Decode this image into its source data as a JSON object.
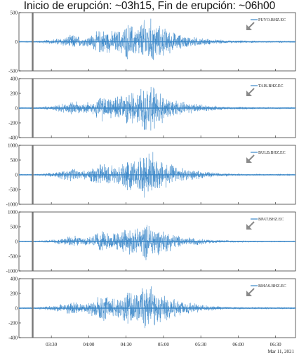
{
  "title": "Inicio de erupción: ~03h15, Fin de erupción: ~06h00",
  "trace_color": "#3a87c8",
  "marker_color": "#777777",
  "arrow_color": "#8a8a8a",
  "chart_data": {
    "type": "line",
    "x_ticks": [
      "03:30",
      "04:00",
      "04:30",
      "05:00",
      "05:30",
      "06:00",
      "06:30"
    ],
    "date_label": "Mar 11, 2021",
    "x_range": [
      "03:04",
      "06:46"
    ],
    "eruption_start_marker": "03:15",
    "series": [
      {
        "name": "PUYO.BHZ.EC",
        "ylim": [
          -500,
          500
        ],
        "y_ticks": [
          "500",
          "0",
          "-500"
        ],
        "peak_amplitude": 450
      },
      {
        "name": "TAIS.BHZ.EC",
        "ylim": [
          -400,
          400
        ],
        "y_ticks": [
          "400",
          "200",
          "0",
          "-200",
          "-400"
        ],
        "peak_amplitude": 340
      },
      {
        "name": "BULB.BHZ.EC",
        "ylim": [
          -1000,
          1000
        ],
        "y_ticks": [
          "1000",
          "500",
          "0",
          "-500",
          "-1000"
        ],
        "peak_amplitude": 850
      },
      {
        "name": "BPAT.BHZ.EC",
        "ylim": [
          -1000,
          1000
        ],
        "y_ticks": [
          "1000",
          "500",
          "0",
          "-500",
          "-1000"
        ],
        "peak_amplitude": 700
      },
      {
        "name": "BMAS.BHZ.EC",
        "ylim": [
          -400,
          400
        ],
        "y_ticks": [
          "400",
          "200",
          "0",
          "-200",
          "-400"
        ],
        "peak_amplitude": 350
      }
    ]
  }
}
